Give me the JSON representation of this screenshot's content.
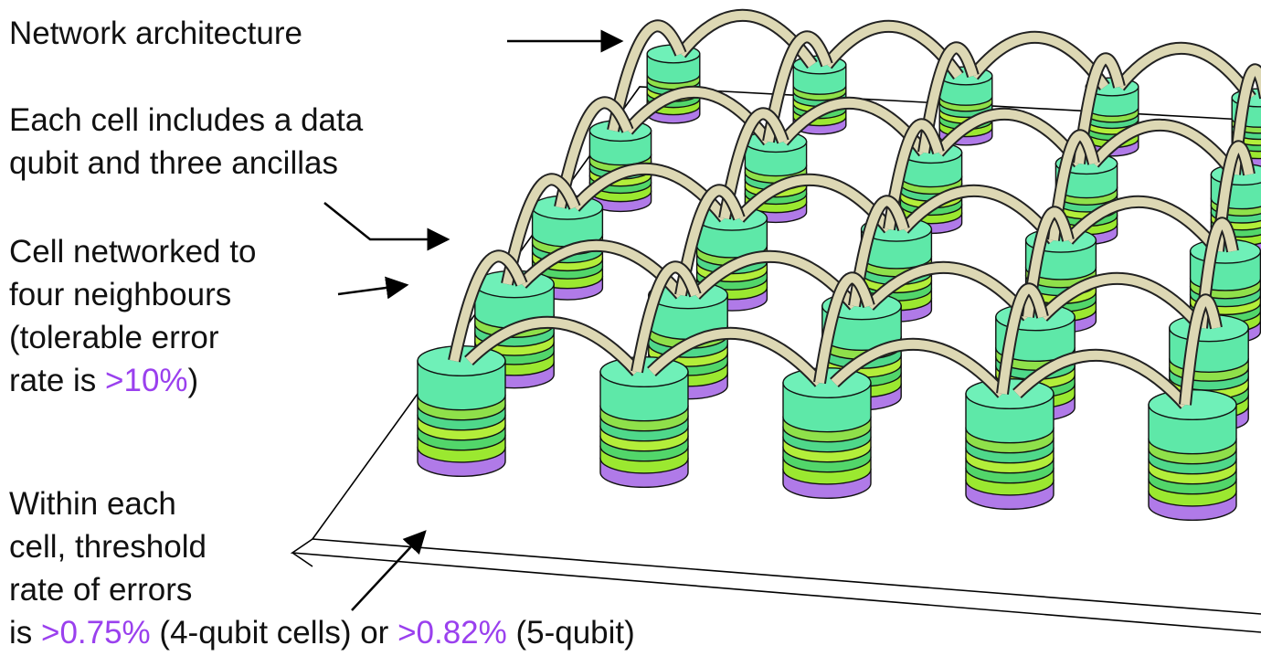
{
  "annotations": [
    {
      "lines": [
        [
          "Network architecture"
        ]
      ]
    },
    {
      "lines": [
        [
          "Each cell includes a data"
        ],
        [
          "qubit and three ancillas"
        ]
      ]
    },
    {
      "lines": [
        [
          "Cell networked to"
        ],
        [
          "four neighbours"
        ],
        [
          "(tolerable error"
        ],
        [
          "rate is ",
          {
            "text": ">10%",
            "color": "#9a40ee"
          },
          ")"
        ]
      ]
    },
    {
      "lines": [
        [
          "Within each"
        ],
        [
          "cell, threshold"
        ],
        [
          "rate of errors"
        ],
        [
          "is ",
          {
            "text": ">0.75%",
            "color": "#9a40ee"
          },
          " (4-qubit cells) or ",
          {
            "text": ">0.82%",
            "color": "#9a40ee"
          },
          " (5-qubit)"
        ]
      ]
    }
  ]
}
